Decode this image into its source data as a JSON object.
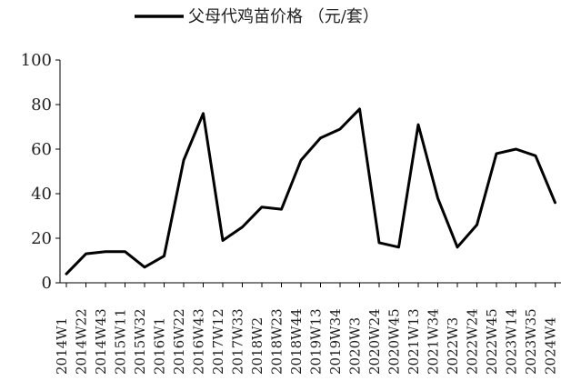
{
  "chart_data": {
    "type": "line",
    "legend": {
      "position": "top-center",
      "label": "父母代鸡苗价格 （元/套）"
    },
    "ylim": [
      0,
      100
    ],
    "yticks": [
      0,
      20,
      40,
      60,
      80,
      100
    ],
    "grid": false,
    "x_tick_labels": [
      "2014W1",
      "2014W22",
      "2014W43",
      "2015W11",
      "2015W32",
      "2016W1",
      "2016W22",
      "2016W43",
      "2017W12",
      "2017W33",
      "2018W2",
      "2018W23",
      "2018W44",
      "2019W13",
      "2019W34",
      "2020W3",
      "2020W24",
      "2020W45",
      "2021W13",
      "2021W34",
      "2022W3",
      "2022W24",
      "2022W45",
      "2023W14",
      "2023W35",
      "2024W4"
    ],
    "series": [
      {
        "name": "父母代鸡苗价格 （元/套）",
        "color": "#000000",
        "points": [
          {
            "x": "2014W1",
            "y": 4
          },
          {
            "x": "2014W22",
            "y": 13
          },
          {
            "x": "2014W43",
            "y": 14
          },
          {
            "x": "2015W11",
            "y": 14
          },
          {
            "x": "2015W32",
            "y": 7
          },
          {
            "x": "2016W1",
            "y": 12
          },
          {
            "x": "2016W22",
            "y": 55
          },
          {
            "x": "2016W43",
            "y": 76
          },
          {
            "x": "2017W12",
            "y": 19
          },
          {
            "x": "2017W33",
            "y": 25
          },
          {
            "x": "2018W2",
            "y": 34
          },
          {
            "x": "2018W23",
            "y": 33
          },
          {
            "x": "2018W44",
            "y": 55
          },
          {
            "x": "2019W13",
            "y": 65
          },
          {
            "x": "2019W34",
            "y": 69
          },
          {
            "x": "2020W3",
            "y": 78
          },
          {
            "x": "2020W24",
            "y": 18
          },
          {
            "x": "2020W45",
            "y": 16
          },
          {
            "x": "2021W13",
            "y": 71
          },
          {
            "x": "2021W34",
            "y": 38
          },
          {
            "x": "2022W3",
            "y": 16
          },
          {
            "x": "2022W24",
            "y": 26
          },
          {
            "x": "2022W45",
            "y": 58
          },
          {
            "x": "2023W14",
            "y": 60
          },
          {
            "x": "2023W35",
            "y": 57
          },
          {
            "x": "2024W4",
            "y": 36
          }
        ]
      }
    ]
  }
}
